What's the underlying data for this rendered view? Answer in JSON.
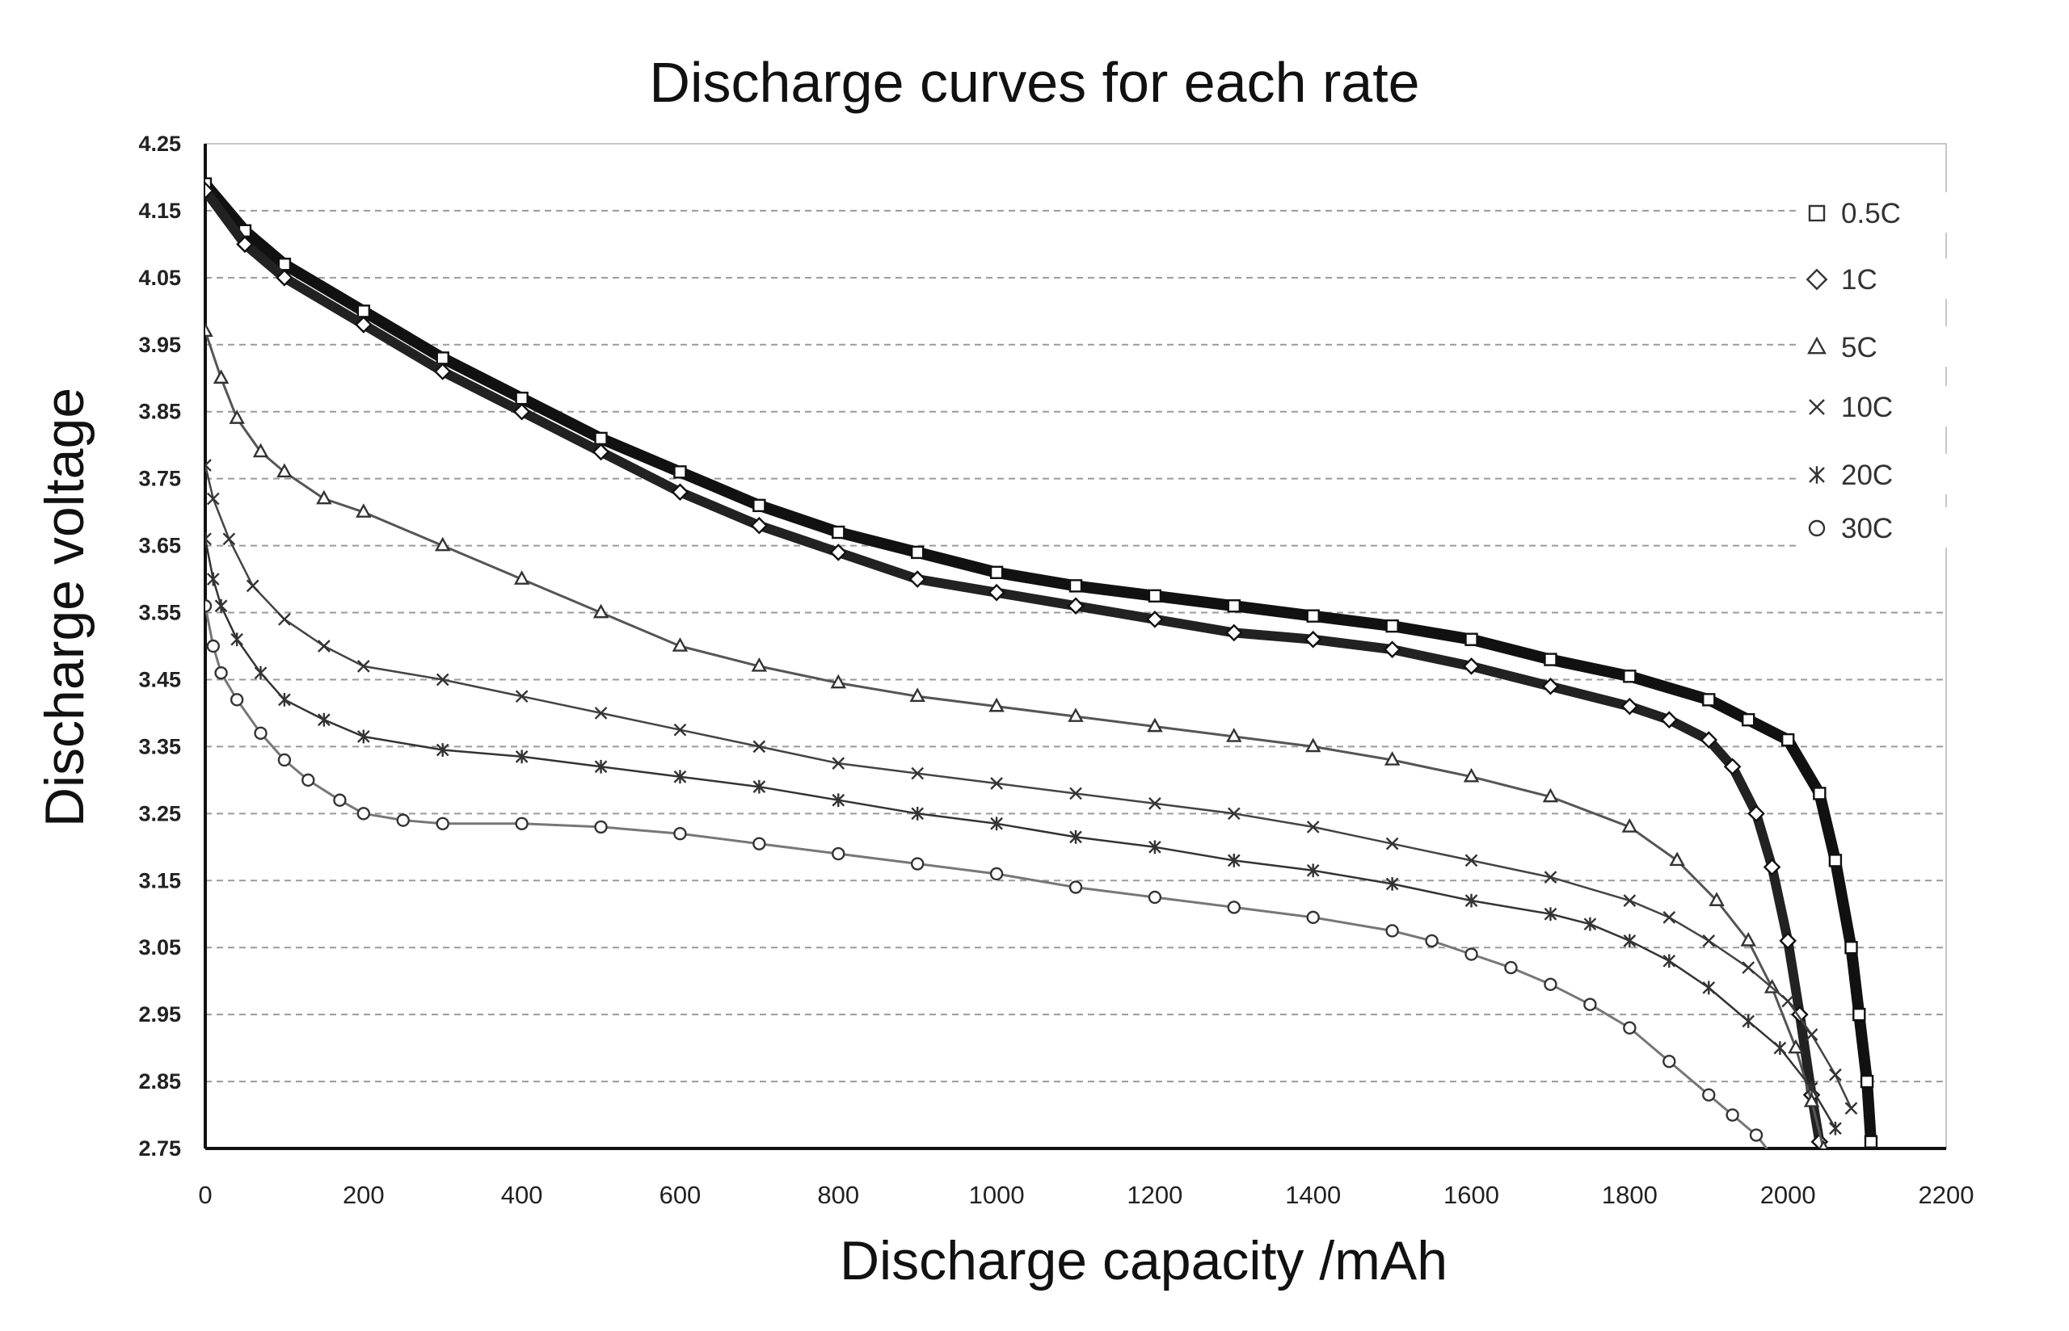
{
  "chart_data": {
    "type": "line",
    "title": "Discharge curves for each rate",
    "xlabel": "Discharge capacity /mAh",
    "ylabel": "Discharge voltage",
    "xlim": [
      0,
      2200
    ],
    "ylim": [
      2.75,
      4.25
    ],
    "xticks": [
      "0",
      "200",
      "400",
      "600",
      "800",
      "1000",
      "1200",
      "1400",
      "1600",
      "1800",
      "2000",
      "2200"
    ],
    "yticks": [
      "4.25",
      "4.15",
      "4.05",
      "3.95",
      "3.85",
      "3.75",
      "3.65",
      "3.55",
      "3.45",
      "3.35",
      "3.25",
      "3.15",
      "3.05",
      "2.95",
      "2.85",
      "2.75"
    ],
    "grid": "horizontal dashed",
    "legend_position": "top-right",
    "series": [
      {
        "name": "0.5C",
        "marker": "square",
        "x": [
          0,
          50,
          100,
          200,
          300,
          400,
          500,
          600,
          700,
          800,
          900,
          1000,
          1100,
          1200,
          1300,
          1400,
          1500,
          1600,
          1700,
          1800,
          1900,
          1950,
          2000,
          2040,
          2060,
          2080,
          2090,
          2100,
          2105
        ],
        "y": [
          4.19,
          4.12,
          4.07,
          4.0,
          3.93,
          3.87,
          3.81,
          3.76,
          3.71,
          3.67,
          3.64,
          3.61,
          3.59,
          3.575,
          3.56,
          3.545,
          3.53,
          3.51,
          3.48,
          3.455,
          3.42,
          3.39,
          3.36,
          3.28,
          3.18,
          3.05,
          2.95,
          2.85,
          2.76
        ]
      },
      {
        "name": "1C",
        "marker": "diamond",
        "x": [
          0,
          50,
          100,
          200,
          300,
          400,
          500,
          600,
          700,
          800,
          900,
          1000,
          1100,
          1200,
          1300,
          1400,
          1500,
          1600,
          1700,
          1800,
          1850,
          1900,
          1930,
          1960,
          1980,
          2000,
          2015,
          2030,
          2040
        ],
        "y": [
          4.18,
          4.1,
          4.05,
          3.98,
          3.91,
          3.85,
          3.79,
          3.73,
          3.68,
          3.64,
          3.6,
          3.58,
          3.56,
          3.54,
          3.52,
          3.51,
          3.495,
          3.47,
          3.44,
          3.41,
          3.39,
          3.36,
          3.32,
          3.25,
          3.17,
          3.06,
          2.95,
          2.83,
          2.76
        ]
      },
      {
        "name": "5C",
        "marker": "triangle",
        "x": [
          0,
          20,
          40,
          70,
          100,
          150,
          200,
          300,
          400,
          500,
          600,
          700,
          800,
          900,
          1000,
          1100,
          1200,
          1300,
          1400,
          1500,
          1600,
          1700,
          1800,
          1860,
          1910,
          1950,
          1980,
          2010,
          2030,
          2045
        ],
        "y": [
          3.97,
          3.9,
          3.84,
          3.79,
          3.76,
          3.72,
          3.7,
          3.65,
          3.6,
          3.55,
          3.5,
          3.47,
          3.445,
          3.425,
          3.41,
          3.395,
          3.38,
          3.365,
          3.35,
          3.33,
          3.305,
          3.275,
          3.23,
          3.18,
          3.12,
          3.06,
          2.99,
          2.9,
          2.82,
          2.75
        ]
      },
      {
        "name": "10C",
        "marker": "x",
        "x": [
          0,
          10,
          30,
          60,
          100,
          150,
          200,
          300,
          400,
          500,
          600,
          700,
          800,
          900,
          1000,
          1100,
          1200,
          1300,
          1400,
          1500,
          1600,
          1700,
          1800,
          1850,
          1900,
          1950,
          2000,
          2030,
          2060,
          2080
        ],
        "y": [
          3.77,
          3.72,
          3.66,
          3.59,
          3.54,
          3.5,
          3.47,
          3.45,
          3.425,
          3.4,
          3.375,
          3.35,
          3.325,
          3.31,
          3.295,
          3.28,
          3.265,
          3.25,
          3.23,
          3.205,
          3.18,
          3.155,
          3.12,
          3.095,
          3.06,
          3.02,
          2.97,
          2.92,
          2.86,
          2.81
        ]
      },
      {
        "name": "20C",
        "marker": "asterisk",
        "x": [
          0,
          10,
          20,
          40,
          70,
          100,
          150,
          200,
          300,
          400,
          500,
          600,
          700,
          800,
          900,
          1000,
          1100,
          1200,
          1300,
          1400,
          1500,
          1600,
          1700,
          1750,
          1800,
          1850,
          1900,
          1950,
          1990,
          2030,
          2060
        ],
        "y": [
          3.66,
          3.6,
          3.56,
          3.51,
          3.46,
          3.42,
          3.39,
          3.365,
          3.345,
          3.335,
          3.32,
          3.305,
          3.29,
          3.27,
          3.25,
          3.235,
          3.215,
          3.2,
          3.18,
          3.165,
          3.145,
          3.12,
          3.1,
          3.085,
          3.06,
          3.03,
          2.99,
          2.94,
          2.9,
          2.84,
          2.78
        ]
      },
      {
        "name": "30C",
        "marker": "circle",
        "x": [
          0,
          10,
          20,
          40,
          70,
          100,
          130,
          170,
          200,
          250,
          300,
          400,
          500,
          600,
          700,
          800,
          900,
          1000,
          1100,
          1200,
          1300,
          1400,
          1500,
          1550,
          1600,
          1650,
          1700,
          1750,
          1800,
          1850,
          1900,
          1930,
          1960,
          1980,
          2000
        ],
        "y": [
          3.56,
          3.5,
          3.46,
          3.42,
          3.37,
          3.33,
          3.3,
          3.27,
          3.25,
          3.24,
          3.235,
          3.235,
          3.23,
          3.22,
          3.205,
          3.19,
          3.175,
          3.16,
          3.14,
          3.125,
          3.11,
          3.095,
          3.075,
          3.06,
          3.04,
          3.02,
          2.995,
          2.965,
          2.93,
          2.88,
          2.83,
          2.8,
          2.77,
          2.74,
          2.71
        ]
      }
    ]
  }
}
